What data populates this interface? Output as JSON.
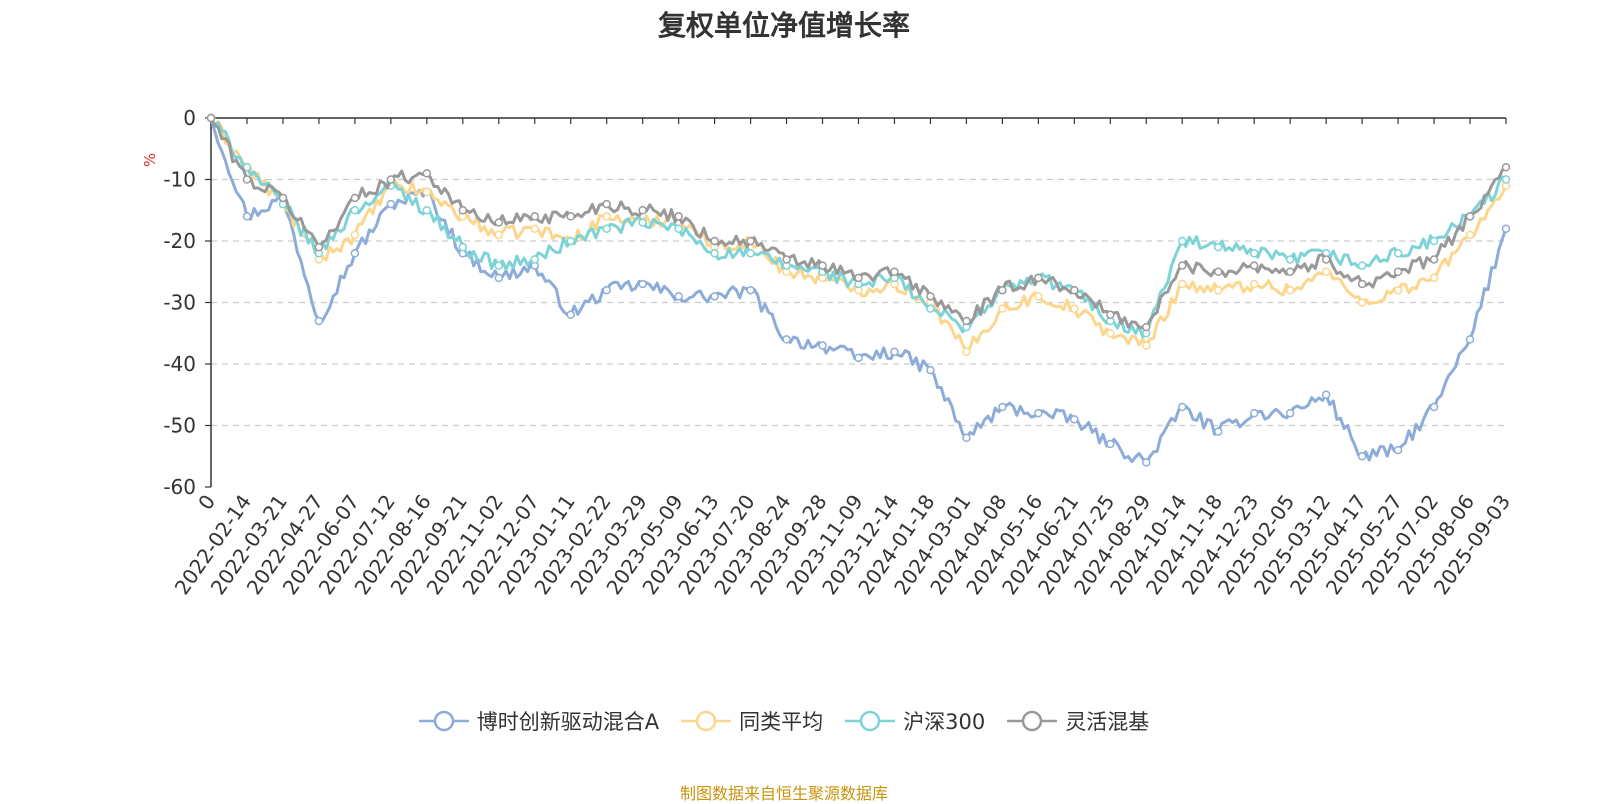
{
  "title": "复权单位净值增长率",
  "source_note": "制图数据来自恒生聚源数据库",
  "chart_data": {
    "type": "line",
    "ylabel": "%",
    "ylim": [
      -60,
      0
    ],
    "yticks": [
      0,
      -10,
      -20,
      -30,
      -40,
      -50,
      -60
    ],
    "x_tick_labels": [
      "0",
      "2022-02-14",
      "2022-03-21",
      "2022-04-27",
      "2022-06-07",
      "2022-07-12",
      "2022-08-16",
      "2022-09-21",
      "2022-11-02",
      "2022-12-07",
      "2023-01-11",
      "2023-02-22",
      "2023-03-29",
      "2023-05-09",
      "2023-06-13",
      "2023-07-20",
      "2023-08-24",
      "2023-09-28",
      "2023-11-09",
      "2023-12-14",
      "2024-01-18",
      "2024-03-01",
      "2024-04-08",
      "2024-05-16",
      "2024-06-21",
      "2024-07-25",
      "2024-08-29",
      "2024-10-14",
      "2024-11-18",
      "2024-12-23",
      "2025-02-05",
      "2025-03-12",
      "2025-04-17",
      "2025-05-27",
      "2025-07-02",
      "2025-08-06",
      "2025-09-03"
    ],
    "grid": true,
    "legend_position": "bottom",
    "series": [
      {
        "name": "博时创新驱动混合A",
        "color": "#8eacd9",
        "values": [
          0,
          -16,
          -13,
          -33,
          -22,
          -14,
          -12,
          -22,
          -26,
          -24,
          -32,
          -28,
          -27,
          -29,
          -29,
          -28,
          -36,
          -37,
          -39,
          -38,
          -41,
          -52,
          -47,
          -48,
          -49,
          -53,
          -56,
          -47,
          -51,
          -48,
          -48,
          -45,
          -55,
          -54,
          -47,
          -36,
          -18
        ]
      },
      {
        "name": "同类平均",
        "color": "#fcd68c",
        "values": [
          0,
          -8,
          -14,
          -23,
          -19,
          -11,
          -12,
          -16,
          -19,
          -18,
          -20,
          -16,
          -17,
          -16,
          -21,
          -20,
          -25,
          -26,
          -28,
          -27,
          -30,
          -38,
          -31,
          -29,
          -31,
          -35,
          -37,
          -27,
          -28,
          -27,
          -28,
          -25,
          -30,
          -28,
          -26,
          -19,
          -11
        ]
      },
      {
        "name": "沪深300",
        "color": "#7dd3d6",
        "values": [
          0,
          -8,
          -14,
          -22,
          -15,
          -11,
          -15,
          -21,
          -24,
          -23,
          -20,
          -18,
          -17,
          -18,
          -22,
          -22,
          -24,
          -25,
          -27,
          -26,
          -31,
          -34,
          -28,
          -26,
          -28,
          -33,
          -35,
          -20,
          -21,
          -22,
          -23,
          -22,
          -24,
          -22,
          -20,
          -16,
          -10
        ]
      },
      {
        "name": "灵活混基",
        "color": "#999999",
        "values": [
          0,
          -10,
          -13,
          -21,
          -13,
          -10,
          -9,
          -15,
          -17,
          -16,
          -16,
          -14,
          -15,
          -16,
          -20,
          -20,
          -23,
          -24,
          -26,
          -25,
          -29,
          -33,
          -28,
          -26,
          -28,
          -32,
          -34,
          -24,
          -25,
          -24,
          -25,
          -23,
          -27,
          -25,
          -23,
          -16,
          -8
        ]
      }
    ]
  },
  "legend": [
    {
      "label": "博时创新驱动混合A",
      "color": "#8eacd9"
    },
    {
      "label": "同类平均",
      "color": "#fcd68c"
    },
    {
      "label": "沪深300",
      "color": "#7dd3d6"
    },
    {
      "label": "灵活混基",
      "color": "#999999"
    }
  ]
}
